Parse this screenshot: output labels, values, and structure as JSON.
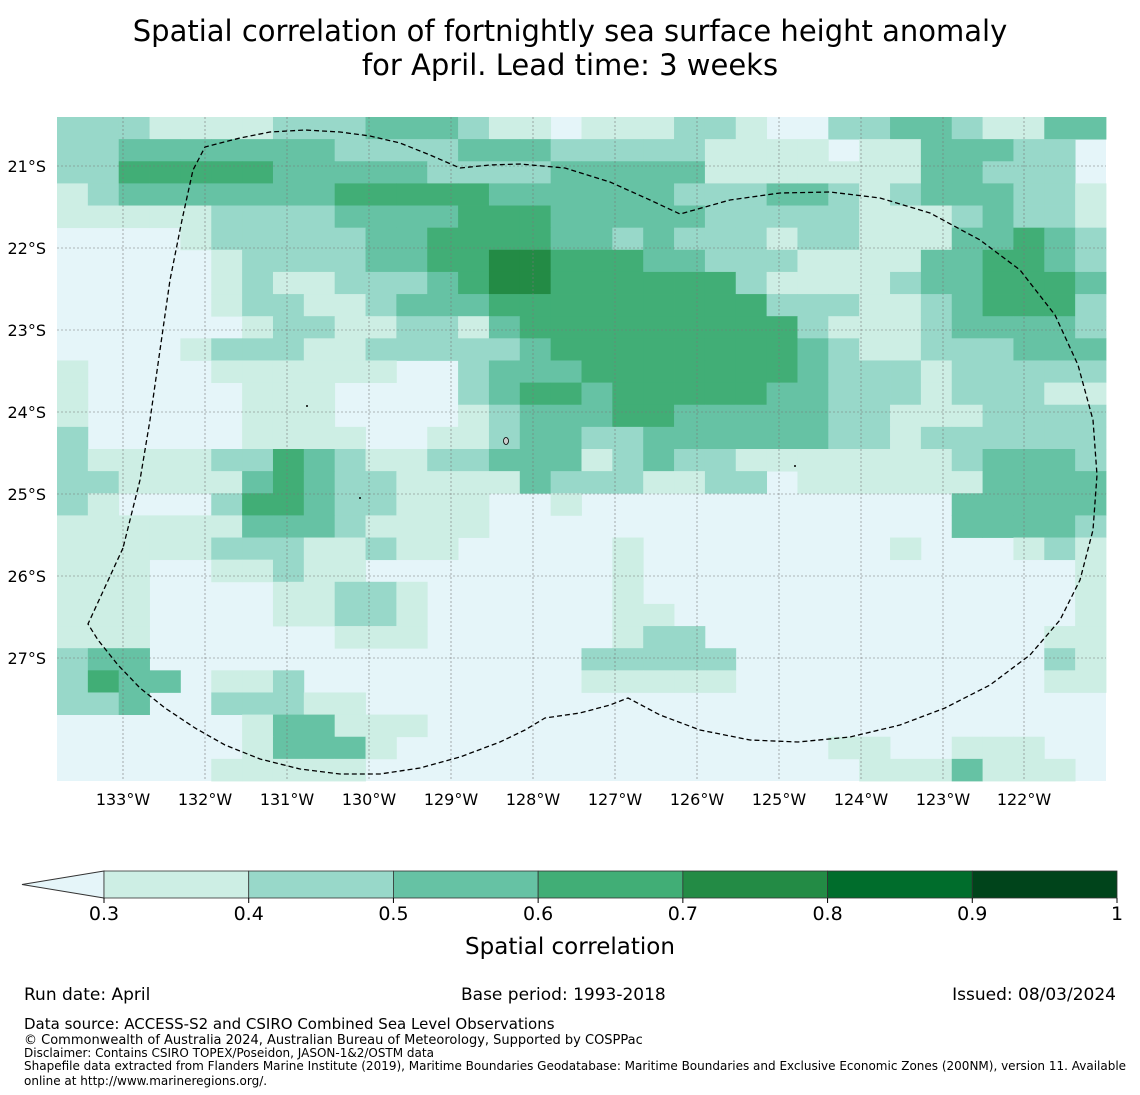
{
  "title": {
    "line1": "Spatial correlation of fortnightly sea surface height anomaly",
    "line2": "for April. Lead time: 3 weeks"
  },
  "map": {
    "lat_labels": [
      "21°S",
      "22°S",
      "23°S",
      "24°S",
      "25°S",
      "26°S",
      "27°S"
    ],
    "lon_labels": [
      "133°W",
      "132°W",
      "131°W",
      "130°W",
      "129°W",
      "128°W",
      "127°W",
      "126°W",
      "125°W",
      "124°W",
      "123°W",
      "122°W"
    ],
    "gridlines": true,
    "boundary_style": "dashed black line (Maritime boundary / EEZ)"
  },
  "colorbar": {
    "label": "Spatial correlation",
    "ticks": [
      "0.3",
      "0.4",
      "0.5",
      "0.6",
      "0.7",
      "0.8",
      "0.9",
      "1"
    ],
    "colors": [
      "#cdeee4",
      "#98d8c9",
      "#66c2a4",
      "#41ae76",
      "#238b45",
      "#006d2c",
      "#00441b"
    ],
    "below_min_color": "#e5f5f9"
  },
  "footer": {
    "run_date": "Run date: April",
    "base_period": "Base period: 1993-2018",
    "issued": "Issued: 08/03/2024",
    "data_source": "Data source: ACCESS-S2 and CSIRO Combined Sea Level Observations",
    "copyright": "© Commonwealth of Australia 2024, Australian Bureau of Meteorology, Supported by COSPPac",
    "disclaimer": "Disclaimer: Contains CSIRO TOPEX/Poseidon, JASON-1&2/OSTM data",
    "shapefile_line1": "Shapefile data extracted from Flanders Marine Institute (2019), Maritime Boundaries Geodatabase: Maritime Boundaries and Exclusive Economic Zones (200NM), version 11. Available",
    "shapefile_line2": "online at http://www.marineregions.org/."
  },
  "correlation_grid": [
    "2221111222333211011122100223321133",
    "2233333332222333222221111011333220",
    "2244444333332222333331111111332220",
    "1233333334444433333322233212333221",
    "1111122223333444333332222211123221",
    "0000122222334444332322212211133432",
    "0000012222334455444332221111334432",
    "0000012112223455444444211112334443",
    "0000012211233344444444422211234442",
    "0000001221122134444444442111233332",
    "0000122211222223444444443211222333",
    "1000011111100233344444443222122222",
    "1000001110000234434444433222122211",
    "1000001110000123334433333221112222",
    "2000001111001123322333333221222222",
    "2111122432112233312322111111123332",
    "2211113432211113222112201111113333",
    "2100024432211100100000000000033333",
    "1111113332111100000000000000033332",
    "1111122211211000001000000001000121",
    "1110011211000000001000000000000001",
    "1110000112210000001000000000000001",
    "1110000112210000001100000000000001",
    "1110000001110000001220000000000011",
    "2330000000000000022222000000000021",
    "2433011200000000011111000000000011",
    "2230022211000000000000000000000000",
    "0000001331110000000000000000000000",
    "0000001333100000000000000110011100",
    "0000011111000000000000000011131110"
  ]
}
